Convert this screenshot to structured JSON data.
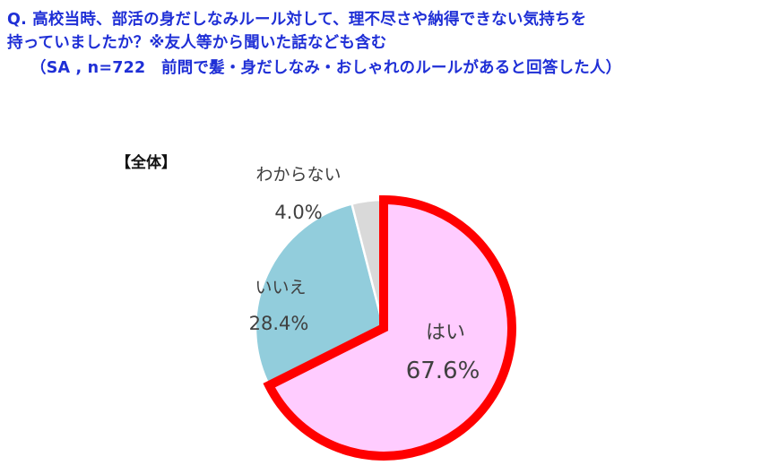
{
  "question": {
    "line1": "Q. 高校当時、部活の身だしなみルール対して、理不尽さや納得できない気持ちを",
    "line2": "持っていましたか？※友人等から聞いた話なども含む",
    "line3": "（SA , n=722　前問で髪・身だしなみ・おしゃれのルールがあると回答した人）"
  },
  "group_label": "【全体】",
  "chart_data": {
    "type": "pie",
    "title": "",
    "slices": [
      {
        "label": "はい",
        "value": 67.6,
        "value_text": "67.6%",
        "color": "#ffccff",
        "highlight": true,
        "highlight_color": "#ff0000"
      },
      {
        "label": "いいえ",
        "value": 28.4,
        "value_text": "28.4%",
        "color": "#92cddc"
      },
      {
        "label": "わからない",
        "value": 4.0,
        "value_text": "4.0%",
        "color": "#d9d9d9"
      }
    ],
    "start": "12 o'clock",
    "direction": "clockwise"
  }
}
